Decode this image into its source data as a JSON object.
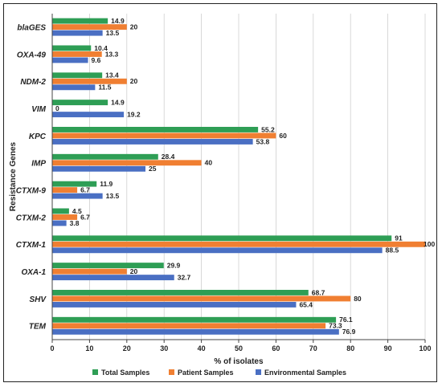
{
  "chart_data": {
    "type": "bar",
    "orientation": "horizontal",
    "xlabel": "% of isolates",
    "ylabel": "Resistance Genes",
    "xlim": [
      0,
      100
    ],
    "xticks": [
      0,
      10,
      20,
      30,
      40,
      50,
      60,
      70,
      80,
      90,
      100
    ],
    "categories": [
      "blaGES",
      "OXA-49",
      "NDM-2",
      "VIM",
      "KPC",
      "IMP",
      "CTXM-9",
      "CTXM-2",
      "CTXM-1",
      "OXA-1",
      "SHV",
      "TEM"
    ],
    "series": [
      {
        "name": "Total Samples",
        "color": "#2e9e55",
        "values": [
          14.9,
          10.4,
          13.4,
          14.9,
          55.2,
          28.4,
          11.9,
          4.5,
          91,
          29.9,
          68.7,
          76.1
        ]
      },
      {
        "name": "Patient Samples",
        "color": "#f07f32",
        "values": [
          20,
          13.3,
          20,
          0,
          60,
          40,
          6.7,
          6.7,
          100,
          20,
          80,
          73.3
        ]
      },
      {
        "name": "Environmental Samples",
        "color": "#4a6fc3",
        "values": [
          13.5,
          9.6,
          11.5,
          19.2,
          53.8,
          25,
          13.5,
          3.8,
          88.5,
          32.7,
          65.4,
          76.9
        ]
      }
    ],
    "value_labels": [
      [
        "14.9",
        "20",
        "13.5"
      ],
      [
        "10.4",
        "13.3",
        "9.6"
      ],
      [
        "13.4",
        "20",
        "11.5"
      ],
      [
        "14.9",
        "0",
        "19.2"
      ],
      [
        "55.2",
        "60",
        "53.8"
      ],
      [
        "28.4",
        "40",
        "25"
      ],
      [
        "11.9",
        "6.7",
        "13.5"
      ],
      [
        "4.5",
        "6.7",
        "3.8"
      ],
      [
        "91",
        "100",
        "88.5"
      ],
      [
        "29.9",
        "20",
        "32.7"
      ],
      [
        "68.7",
        "80",
        "65.4"
      ],
      [
        "76.1",
        "73.3",
        "76.9"
      ]
    ],
    "legend_position": "bottom",
    "grid": "vertical"
  }
}
